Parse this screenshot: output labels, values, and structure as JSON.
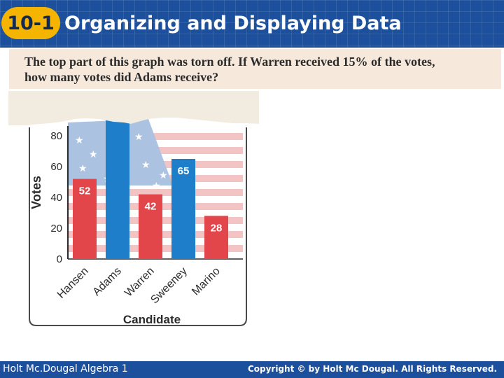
{
  "header": {
    "lesson_number": "10-1",
    "title": "Organizing and Displaying Data"
  },
  "question": {
    "line1": "The top part of this graph was torn off. If Warren received 15% of the votes,",
    "line2": "how many votes did Adams receive?"
  },
  "footer": {
    "left": "Holt Mc.Dougal Algebra 1",
    "right": "Copyright © by Holt Mc Dougal. All Rights Reserved."
  },
  "colors": {
    "header_bg": "#1c4f9c",
    "badge": "#f5b400",
    "bar_red": "#e2454a",
    "bar_blue": "#1f7ec9"
  },
  "chart_data": {
    "type": "bar",
    "xlabel": "Candidate",
    "ylabel": "Votes",
    "yticks": [
      0,
      20,
      40,
      60,
      80
    ],
    "categories": [
      "Hansen",
      "Adams",
      "Warren",
      "Sweeney",
      "Marino"
    ],
    "values": [
      52,
      null,
      42,
      65,
      28
    ],
    "value_labels": [
      "52",
      "",
      "42",
      "65",
      "28"
    ],
    "bar_colors": [
      "#e2454a",
      "#1f7ec9",
      "#e2454a",
      "#1f7ec9",
      "#e2454a"
    ],
    "adams_visible_min": 90,
    "note_torn": true,
    "grid": false
  }
}
